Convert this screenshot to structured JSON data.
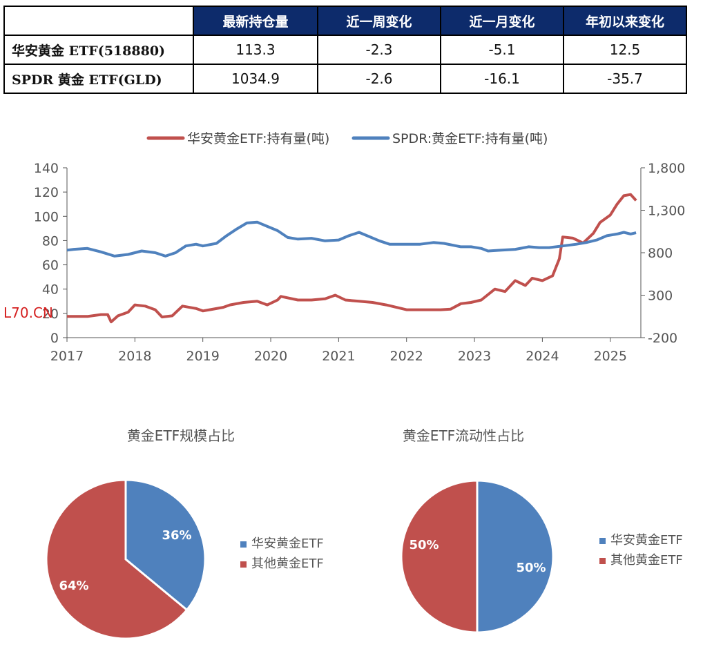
{
  "table": {
    "headers": [
      "",
      "最新持仓量",
      "近一周变化",
      "近一月变化",
      "年初以来变化"
    ],
    "rows": [
      {
        "name": "华安黄金 ETF(518880)",
        "cells": [
          "113.3",
          "-2.3",
          "-5.1",
          "12.5"
        ]
      },
      {
        "name": "SPDR 黄金 ETF(GLD)",
        "cells": [
          "1034.9",
          "-2.6",
          "-16.1",
          "-35.7"
        ]
      }
    ]
  },
  "watermark": "L70.CN",
  "chart_data": [
    {
      "type": "line",
      "legend_position": "top",
      "grid": false,
      "x_ticks": [
        "2017",
        "2018",
        "2019",
        "2020",
        "2021",
        "2022",
        "2023",
        "2024",
        "2025"
      ],
      "y_left": {
        "ticks": [
          "0",
          "20",
          "40",
          "60",
          "80",
          "100",
          "120",
          "140"
        ],
        "range": [
          0,
          140
        ]
      },
      "y_right": {
        "ticks": [
          "-200",
          "300",
          "800",
          "1,300",
          "1,800"
        ],
        "range": [
          -200,
          1800
        ]
      },
      "series": [
        {
          "name": "华安黄金ETF:持有量(吨)",
          "axis": "left",
          "color": "#c0504d",
          "points": [
            [
              2017.0,
              17.5
            ],
            [
              2017.3,
              17.5
            ],
            [
              2017.5,
              19
            ],
            [
              2017.6,
              19
            ],
            [
              2017.65,
              13
            ],
            [
              2017.75,
              18
            ],
            [
              2017.9,
              21
            ],
            [
              2018.0,
              27
            ],
            [
              2018.15,
              26
            ],
            [
              2018.3,
              23
            ],
            [
              2018.4,
              17
            ],
            [
              2018.55,
              18
            ],
            [
              2018.7,
              26
            ],
            [
              2018.9,
              24
            ],
            [
              2019.0,
              22
            ],
            [
              2019.1,
              23
            ],
            [
              2019.3,
              25
            ],
            [
              2019.4,
              27
            ],
            [
              2019.6,
              29
            ],
            [
              2019.8,
              30
            ],
            [
              2019.95,
              27
            ],
            [
              2020.1,
              31
            ],
            [
              2020.15,
              34
            ],
            [
              2020.4,
              31
            ],
            [
              2020.6,
              31
            ],
            [
              2020.8,
              32
            ],
            [
              2020.95,
              35
            ],
            [
              2021.1,
              31
            ],
            [
              2021.3,
              30
            ],
            [
              2021.5,
              29
            ],
            [
              2021.7,
              27
            ],
            [
              2021.85,
              25
            ],
            [
              2022.0,
              23
            ],
            [
              2022.2,
              23
            ],
            [
              2022.5,
              23
            ],
            [
              2022.65,
              23.5
            ],
            [
              2022.8,
              28
            ],
            [
              2022.95,
              29
            ],
            [
              2023.1,
              31
            ],
            [
              2023.3,
              40
            ],
            [
              2023.45,
              38
            ],
            [
              2023.6,
              47
            ],
            [
              2023.75,
              43
            ],
            [
              2023.85,
              49
            ],
            [
              2024.0,
              47
            ],
            [
              2024.15,
              51
            ],
            [
              2024.25,
              65
            ],
            [
              2024.3,
              83
            ],
            [
              2024.45,
              82
            ],
            [
              2024.6,
              78
            ],
            [
              2024.75,
              86
            ],
            [
              2024.85,
              95
            ],
            [
              2025.0,
              101
            ],
            [
              2025.1,
              110
            ],
            [
              2025.2,
              117
            ],
            [
              2025.3,
              118
            ],
            [
              2025.38,
              113
            ]
          ]
        },
        {
          "name": "SPDR:黄金ETF:持有量(吨)",
          "axis": "right",
          "color": "#4f81bd",
          "points": [
            [
              2017.0,
              830
            ],
            [
              2017.1,
              840
            ],
            [
              2017.3,
              850
            ],
            [
              2017.5,
              810
            ],
            [
              2017.7,
              760
            ],
            [
              2017.9,
              780
            ],
            [
              2018.1,
              820
            ],
            [
              2018.3,
              800
            ],
            [
              2018.45,
              760
            ],
            [
              2018.6,
              800
            ],
            [
              2018.75,
              880
            ],
            [
              2018.9,
              900
            ],
            [
              2019.0,
              880
            ],
            [
              2019.2,
              910
            ],
            [
              2019.35,
              1000
            ],
            [
              2019.5,
              1080
            ],
            [
              2019.65,
              1150
            ],
            [
              2019.8,
              1160
            ],
            [
              2019.95,
              1110
            ],
            [
              2020.1,
              1060
            ],
            [
              2020.25,
              980
            ],
            [
              2020.4,
              960
            ],
            [
              2020.6,
              970
            ],
            [
              2020.8,
              940
            ],
            [
              2021.0,
              950
            ],
            [
              2021.15,
              1000
            ],
            [
              2021.3,
              1040
            ],
            [
              2021.45,
              990
            ],
            [
              2021.6,
              940
            ],
            [
              2021.75,
              900
            ],
            [
              2022.0,
              900
            ],
            [
              2022.2,
              900
            ],
            [
              2022.4,
              920
            ],
            [
              2022.55,
              910
            ],
            [
              2022.8,
              870
            ],
            [
              2022.95,
              870
            ],
            [
              2023.1,
              850
            ],
            [
              2023.2,
              820
            ],
            [
              2023.4,
              830
            ],
            [
              2023.6,
              840
            ],
            [
              2023.8,
              870
            ],
            [
              2023.95,
              860
            ],
            [
              2024.1,
              860
            ],
            [
              2024.3,
              880
            ],
            [
              2024.5,
              900
            ],
            [
              2024.65,
              920
            ],
            [
              2024.8,
              950
            ],
            [
              2024.95,
              1000
            ],
            [
              2025.1,
              1020
            ],
            [
              2025.2,
              1040
            ],
            [
              2025.3,
              1020
            ],
            [
              2025.38,
              1035
            ]
          ]
        }
      ]
    },
    {
      "type": "pie",
      "title": "黄金ETF规模占比",
      "legend_position": "right",
      "slices": [
        {
          "label": "华安黄金ETF",
          "value": 36,
          "text": "36%",
          "color": "#4f81bd"
        },
        {
          "label": "其他黄金ETF",
          "value": 64,
          "text": "64%",
          "color": "#c0504d"
        }
      ]
    },
    {
      "type": "pie",
      "title": "黄金ETF流动性占比",
      "legend_position": "right",
      "slices": [
        {
          "label": "华安黄金ETF",
          "value": 50,
          "text": "50%",
          "color": "#4f81bd"
        },
        {
          "label": "其他黄金ETF",
          "value": 50,
          "text": "50%",
          "color": "#c0504d"
        }
      ]
    }
  ]
}
